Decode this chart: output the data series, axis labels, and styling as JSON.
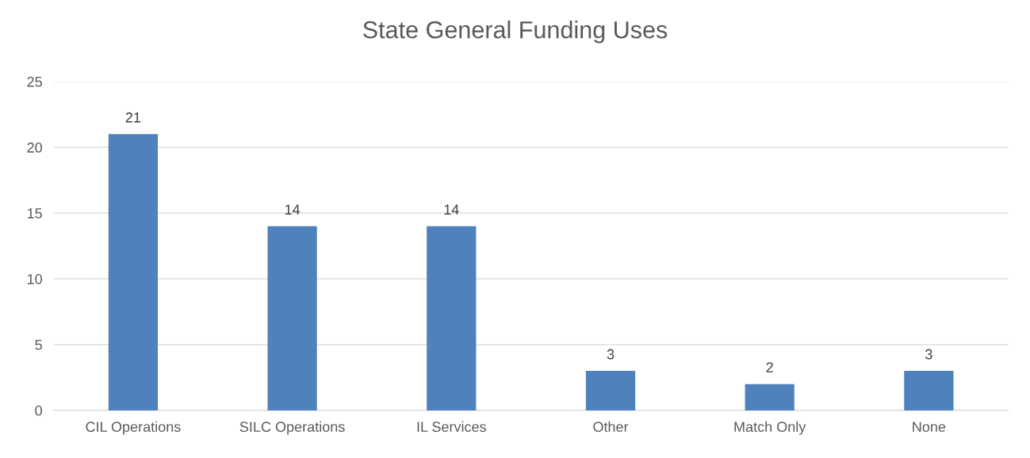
{
  "chart_data": {
    "type": "bar",
    "title": "State General Funding Uses",
    "categories": [
      "CIL Operations",
      "SILC Operations",
      "IL Services",
      "Other",
      "Match Only",
      "None"
    ],
    "values": [
      21,
      14,
      14,
      3,
      2,
      3
    ],
    "color": "#4f81bd",
    "ylim": [
      0,
      25
    ],
    "yticks": [
      0,
      5,
      10,
      15,
      20,
      25
    ],
    "grid": "y",
    "data_labels": true
  }
}
